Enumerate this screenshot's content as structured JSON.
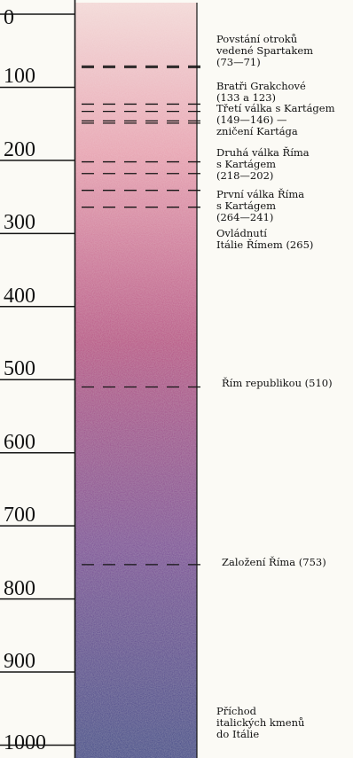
{
  "axis": {
    "ticks": [
      {
        "label": "0",
        "value": 0
      },
      {
        "label": "100",
        "value": 100
      },
      {
        "label": "200",
        "value": 200
      },
      {
        "label": "300",
        "value": 300
      },
      {
        "label": "400",
        "value": 400
      },
      {
        "label": "500",
        "value": 500
      },
      {
        "label": "600",
        "value": 600
      },
      {
        "label": "700",
        "value": 700
      },
      {
        "label": "800",
        "value": 800
      },
      {
        "label": "900",
        "value": 900
      },
      {
        "label": "1000",
        "value": 1000
      }
    ]
  },
  "events": [
    {
      "text": "Povstání otroků\nvedené Spartakem\n(73—71)",
      "years": [
        73,
        71
      ]
    },
    {
      "text": "Bratři Grakchové\n(133 a 123)",
      "years": [
        133,
        123
      ]
    },
    {
      "text": "Třetí válka s Kartágem\n(149—146) —\nzničení Kartága",
      "years": [
        149,
        146
      ]
    },
    {
      "text": "Druhá válka Říma\ns Kartágem\n(218—202)",
      "years": [
        218,
        202
      ]
    },
    {
      "text": "První válka Říma\ns Kartágem\n(264—241)",
      "years": [
        264,
        241
      ]
    },
    {
      "text": "Ovládnutí\nItálie Římem (265)",
      "years": []
    },
    {
      "text": "Řím republikou (510)",
      "years": [
        510
      ]
    },
    {
      "text": "Založení Říma (753)",
      "years": [
        753
      ]
    },
    {
      "text": "Příchod\nitalických kmenů\ndo Itálie",
      "years": []
    }
  ],
  "colors": {
    "band_top": "#f3d8d6",
    "band_upper": "#e7a2b0",
    "band_middle": "#b75083",
    "band_lower": "#7c4b95",
    "band_bottom": "#3a4386",
    "ink": "#151515"
  }
}
